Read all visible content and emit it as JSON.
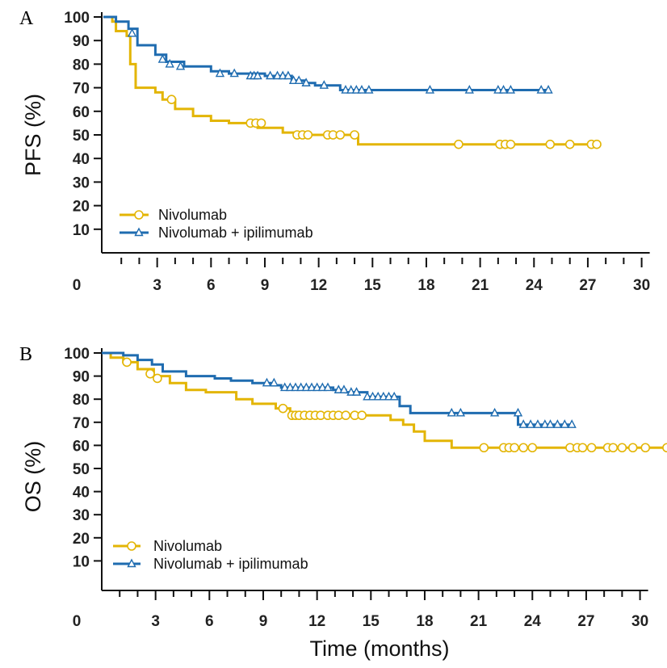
{
  "chart_data": [
    {
      "type": "line",
      "panel_label": "A",
      "ylabel": "PFS (%)",
      "xlabel": "",
      "xlim": [
        0,
        30
      ],
      "ylim": [
        0,
        100
      ],
      "xticks": [
        0,
        3,
        6,
        9,
        12,
        15,
        18,
        21,
        24,
        27,
        30
      ],
      "yticks": [
        10,
        20,
        30,
        40,
        50,
        60,
        70,
        80,
        90,
        100
      ],
      "legend_position": "bottom-left",
      "series": [
        {
          "name": "Nivolumab",
          "color": "#E3B505",
          "marker": "circle",
          "steps": [
            [
              0,
              100
            ],
            [
              0.5,
              98
            ],
            [
              0.7,
              94
            ],
            [
              1.3,
              92
            ],
            [
              1.5,
              80
            ],
            [
              1.8,
              70
            ],
            [
              2.9,
              68
            ],
            [
              3.3,
              65
            ],
            [
              4,
              61
            ],
            [
              5,
              58
            ],
            [
              6,
              56
            ],
            [
              7,
              55
            ],
            [
              8.6,
              53
            ],
            [
              10,
              51
            ],
            [
              11,
              50
            ],
            [
              14.2,
              46
            ],
            [
              27.7,
              46
            ]
          ],
          "censored": [
            [
              3.8,
              65
            ],
            [
              8.2,
              55
            ],
            [
              8.5,
              55
            ],
            [
              8.8,
              55
            ],
            [
              10.8,
              50
            ],
            [
              11.1,
              50
            ],
            [
              11.4,
              50
            ],
            [
              12.5,
              50
            ],
            [
              12.8,
              50
            ],
            [
              13.2,
              50
            ],
            [
              14,
              50
            ],
            [
              19.8,
              46
            ],
            [
              22.1,
              46
            ],
            [
              22.4,
              46
            ],
            [
              22.7,
              46
            ],
            [
              24.9,
              46
            ],
            [
              26,
              46
            ],
            [
              27.2,
              46
            ],
            [
              27.5,
              46
            ]
          ]
        },
        {
          "name": "Nivolumab + ipilimumab",
          "color": "#1F6CB0",
          "marker": "triangle",
          "steps": [
            [
              0,
              100
            ],
            [
              0.7,
              98
            ],
            [
              1.4,
              95
            ],
            [
              1.9,
              88
            ],
            [
              2.9,
              84
            ],
            [
              3.5,
              81
            ],
            [
              4.5,
              79
            ],
            [
              6,
              77
            ],
            [
              7,
              76
            ],
            [
              9,
              75
            ],
            [
              10.5,
              73
            ],
            [
              11.2,
              72
            ],
            [
              11.8,
              71
            ],
            [
              13.2,
              69
            ],
            [
              24.8,
              69
            ]
          ],
          "censored": [
            [
              1.6,
              93
            ],
            [
              3.3,
              82
            ],
            [
              3.7,
              80
            ],
            [
              4.3,
              79
            ],
            [
              6.5,
              76
            ],
            [
              7.3,
              76
            ],
            [
              8.2,
              75
            ],
            [
              8.4,
              75
            ],
            [
              8.6,
              75
            ],
            [
              9.3,
              75
            ],
            [
              9.7,
              75
            ],
            [
              10,
              75
            ],
            [
              10.3,
              75
            ],
            [
              10.6,
              73
            ],
            [
              10.9,
              73
            ],
            [
              11.3,
              72
            ],
            [
              12.3,
              71
            ],
            [
              13.5,
              69
            ],
            [
              13.8,
              69
            ],
            [
              14.1,
              69
            ],
            [
              14.4,
              69
            ],
            [
              14.8,
              69
            ],
            [
              18.2,
              69
            ],
            [
              20.4,
              69
            ],
            [
              22,
              69
            ],
            [
              22.3,
              69
            ],
            [
              22.7,
              69
            ],
            [
              24.4,
              69
            ],
            [
              24.8,
              69
            ]
          ]
        }
      ]
    },
    {
      "type": "line",
      "panel_label": "B",
      "ylabel": "OS (%)",
      "xlabel": "Time (months)",
      "xlim": [
        0,
        31.5
      ],
      "ylim": [
        0,
        100
      ],
      "xticks": [
        0,
        3,
        6,
        9,
        12,
        15,
        18,
        21,
        24,
        27,
        30
      ],
      "yticks": [
        10,
        20,
        30,
        40,
        50,
        60,
        70,
        80,
        90,
        100
      ],
      "legend_position": "bottom-left",
      "series": [
        {
          "name": "Nivolumab",
          "color": "#E3B505",
          "marker": "circle",
          "steps": [
            [
              0,
              100
            ],
            [
              0.5,
              98
            ],
            [
              1.2,
              96
            ],
            [
              2,
              93
            ],
            [
              2.9,
              90
            ],
            [
              3.8,
              87
            ],
            [
              4.7,
              84
            ],
            [
              5.8,
              83
            ],
            [
              7.5,
              80
            ],
            [
              8.4,
              78
            ],
            [
              9.7,
              76
            ],
            [
              10.5,
              73
            ],
            [
              16.1,
              71
            ],
            [
              16.8,
              69
            ],
            [
              17.4,
              66
            ],
            [
              18,
              62
            ],
            [
              19.5,
              59
            ],
            [
              31.5,
              59
            ]
          ],
          "censored": [
            [
              1.4,
              96
            ],
            [
              2.7,
              91
            ],
            [
              3.1,
              89
            ],
            [
              10.1,
              76
            ],
            [
              10.6,
              73
            ],
            [
              10.8,
              73
            ],
            [
              11,
              73
            ],
            [
              11.3,
              73
            ],
            [
              11.6,
              73
            ],
            [
              11.9,
              73
            ],
            [
              12.2,
              73
            ],
            [
              12.6,
              73
            ],
            [
              12.9,
              73
            ],
            [
              13.2,
              73
            ],
            [
              13.6,
              73
            ],
            [
              14.1,
              73
            ],
            [
              14.5,
              73
            ],
            [
              21.3,
              59
            ],
            [
              22.4,
              59
            ],
            [
              22.7,
              59
            ],
            [
              23,
              59
            ],
            [
              23.5,
              59
            ],
            [
              24,
              59
            ],
            [
              26.1,
              59
            ],
            [
              26.5,
              59
            ],
            [
              26.8,
              59
            ],
            [
              27.3,
              59
            ],
            [
              28.2,
              59
            ],
            [
              28.5,
              59
            ],
            [
              29,
              59
            ],
            [
              29.6,
              59
            ],
            [
              30.3,
              59
            ],
            [
              31.5,
              59
            ]
          ]
        },
        {
          "name": "Nivolumab + ipilimumab",
          "color": "#1F6CB0",
          "marker": "triangle",
          "steps": [
            [
              0,
              100
            ],
            [
              1.2,
              99
            ],
            [
              2,
              97
            ],
            [
              2.8,
              95
            ],
            [
              3.4,
              92
            ],
            [
              4.7,
              90
            ],
            [
              6.3,
              89
            ],
            [
              7.2,
              88
            ],
            [
              8.4,
              87
            ],
            [
              9.5,
              86
            ],
            [
              10,
              85
            ],
            [
              12.9,
              84
            ],
            [
              13.6,
              83
            ],
            [
              14.8,
              81
            ],
            [
              16.6,
              77
            ],
            [
              17.2,
              74
            ],
            [
              23.2,
              69
            ],
            [
              26.2,
              69
            ]
          ],
          "censored": [
            [
              9.2,
              87
            ],
            [
              9.6,
              87
            ],
            [
              10.2,
              85
            ],
            [
              10.5,
              85
            ],
            [
              10.8,
              85
            ],
            [
              11.1,
              85
            ],
            [
              11.4,
              85
            ],
            [
              11.7,
              85
            ],
            [
              12,
              85
            ],
            [
              12.3,
              85
            ],
            [
              12.6,
              85
            ],
            [
              13.2,
              84
            ],
            [
              13.5,
              84
            ],
            [
              13.9,
              83
            ],
            [
              14.2,
              83
            ],
            [
              14.8,
              81
            ],
            [
              15.1,
              81
            ],
            [
              15.4,
              81
            ],
            [
              15.7,
              81
            ],
            [
              16,
              81
            ],
            [
              16.3,
              81
            ],
            [
              19.5,
              74
            ],
            [
              20,
              74
            ],
            [
              21.9,
              74
            ],
            [
              23.2,
              74
            ],
            [
              23.5,
              69
            ],
            [
              23.9,
              69
            ],
            [
              24.3,
              69
            ],
            [
              24.7,
              69
            ],
            [
              25,
              69
            ],
            [
              25.4,
              69
            ],
            [
              25.8,
              69
            ],
            [
              26.2,
              69
            ]
          ]
        }
      ]
    }
  ]
}
